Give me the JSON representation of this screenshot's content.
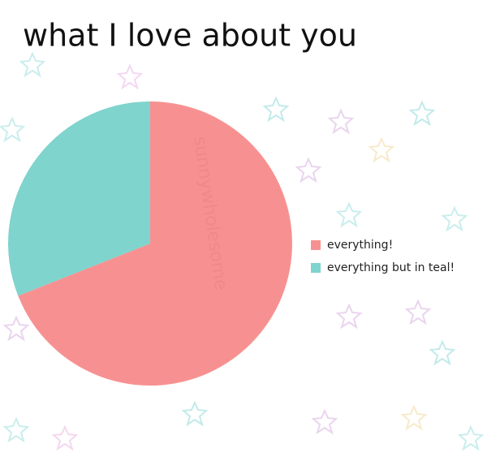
{
  "chart_data": {
    "type": "pie",
    "title": "what I love about you",
    "categories": [
      "everything!",
      "everything but in teal!"
    ],
    "values": [
      69,
      31
    ],
    "colors": [
      "#f79191",
      "#7fd4cd"
    ],
    "legend": "right",
    "watermark": "sunnywholesome"
  }
}
